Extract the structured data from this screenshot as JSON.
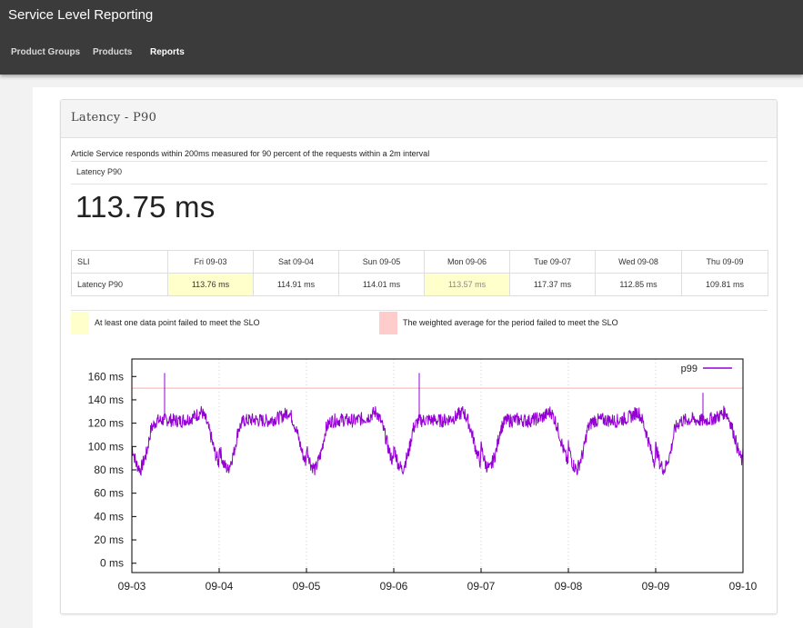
{
  "app": {
    "title": "Service Level Reporting"
  },
  "nav": {
    "items": [
      {
        "label": "Product Groups",
        "active": false
      },
      {
        "label": "Products",
        "active": false
      },
      {
        "label": "Reports",
        "active": true
      }
    ]
  },
  "panel": {
    "title": "Latency - P90",
    "slo_description": "Article Service responds within 200ms measured for 90 percent of the requests within a 2m interval",
    "metric_label": "Latency P90",
    "metric_value": "113.75 ms"
  },
  "sli_table": {
    "headers": [
      "SLI",
      "Fri 09-03",
      "Sat 09-04",
      "Sun 09-05",
      "Mon 09-06",
      "Tue 09-07",
      "Wed 09-08",
      "Thu 09-09"
    ],
    "rows": [
      {
        "name": "Latency P90",
        "values": [
          "113.76 ms",
          "114.91 ms",
          "114.01 ms",
          "113.57 ms",
          "117.37 ms",
          "112.85 ms",
          "109.81 ms"
        ],
        "status": [
          "point_failed",
          "ok",
          "ok",
          "point_failed",
          "ok",
          "ok",
          "ok"
        ]
      }
    ]
  },
  "legend": {
    "point_failed": {
      "label": "At least one data point failed to meet the SLO",
      "color": "#ffffcc"
    },
    "average_failed": {
      "label": "The weighted average for the period failed to meet the SLO",
      "color": "#ffcccc"
    }
  },
  "chart_data": {
    "type": "line",
    "series": [
      {
        "name": "p99",
        "color": "#9400d3",
        "daily_profile": [
          [
            0.0,
            100
          ],
          [
            0.05,
            85
          ],
          [
            0.1,
            80
          ],
          [
            0.17,
            95
          ],
          [
            0.22,
            115
          ],
          [
            0.28,
            122
          ],
          [
            0.4,
            123
          ],
          [
            0.55,
            122
          ],
          [
            0.7,
            125
          ],
          [
            0.8,
            130
          ],
          [
            0.85,
            122
          ],
          [
            0.9,
            110
          ],
          [
            0.95,
            95
          ],
          [
            1.0,
            85
          ]
        ],
        "spikes": [
          {
            "x": "09-03 09:00",
            "y": 163
          },
          {
            "x": "09-06 07:00",
            "y": 163
          },
          {
            "x": "09-09 13:00",
            "y": 146
          }
        ]
      }
    ],
    "threshold": {
      "value": 150,
      "color": "#ffbbbb"
    },
    "x_ticks": [
      "09-03",
      "09-04",
      "09-05",
      "09-06",
      "09-07",
      "09-08",
      "09-09",
      "09-10"
    ],
    "y_ticks": [
      "0 ms",
      "20 ms",
      "40 ms",
      "60 ms",
      "80 ms",
      "100 ms",
      "120 ms",
      "140 ms",
      "160 ms"
    ],
    "xlim": [
      "09-03",
      "09-10"
    ],
    "ylim": [
      -8,
      175
    ],
    "grid": true,
    "legend_position": "top-right"
  }
}
